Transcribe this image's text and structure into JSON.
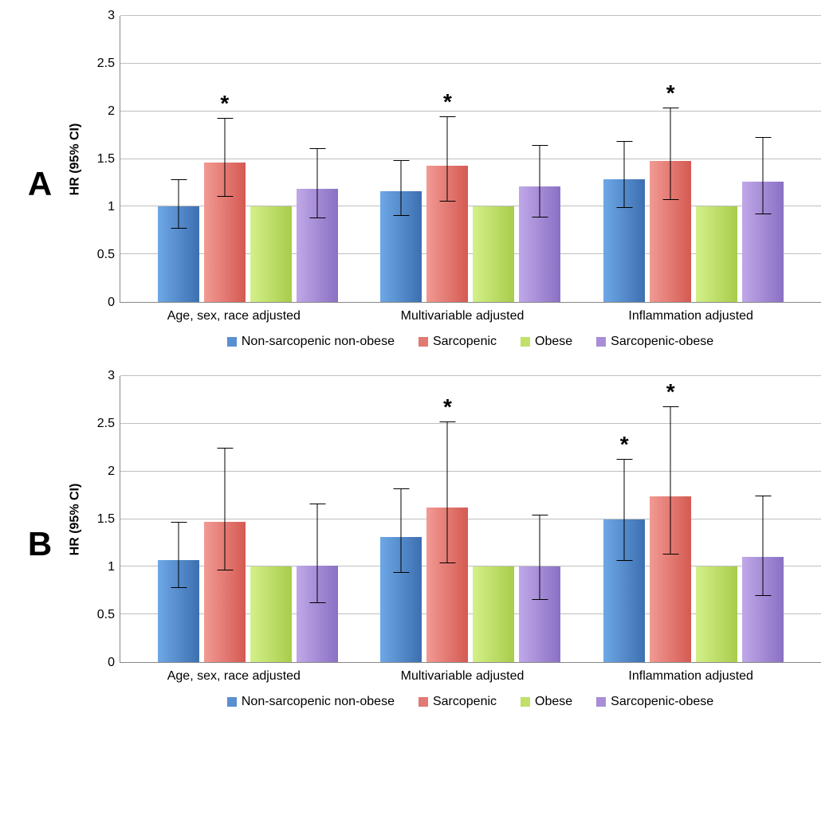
{
  "figure": {
    "background_color": "#ffffff",
    "grid_color": "#bfbfbf",
    "axis_color": "#888888",
    "ylabel": "HR (95% CI)",
    "ylim": [
      0,
      3
    ],
    "ytick_step": 0.5,
    "yticks": [
      "0",
      "0.5",
      "1",
      "1.5",
      "2",
      "2.5",
      "3"
    ],
    "categories": [
      "Age, sex, race adjusted",
      "Multivariable adjusted",
      "Inflammation adjusted"
    ],
    "series": [
      {
        "key": "nonsarc_nonobese",
        "label": "Non-sarcopenic non-obese",
        "gradient": [
          "#6ea8e6",
          "#3d6fb0"
        ],
        "swatch": "#5a8fd0"
      },
      {
        "key": "sarcopenic",
        "label": "Sarcopenic",
        "gradient": [
          "#f29a94",
          "#d45a52"
        ],
        "swatch": "#e17a72"
      },
      {
        "key": "obese",
        "label": "Obese",
        "gradient": [
          "#d4f08a",
          "#a8cc4a"
        ],
        "swatch": "#c0e068"
      },
      {
        "key": "sarc_obese",
        "label": "Sarcopenic-obese",
        "gradient": [
          "#c0a8e8",
          "#8a70c4"
        ],
        "swatch": "#a88ed6"
      }
    ],
    "panels": [
      {
        "label": "A",
        "groups": [
          {
            "bars": [
              {
                "value": 1.0,
                "ci_low": 0.77,
                "ci_high": 1.29,
                "sig": false
              },
              {
                "value": 1.46,
                "ci_low": 1.1,
                "ci_high": 1.93,
                "sig": true
              },
              {
                "value": 1.0,
                "ci_low": null,
                "ci_high": null,
                "sig": false
              },
              {
                "value": 1.19,
                "ci_low": 0.88,
                "ci_high": 1.61,
                "sig": false
              }
            ]
          },
          {
            "bars": [
              {
                "value": 1.16,
                "ci_low": 0.9,
                "ci_high": 1.49,
                "sig": false
              },
              {
                "value": 1.43,
                "ci_low": 1.05,
                "ci_high": 1.95,
                "sig": true
              },
              {
                "value": 1.0,
                "ci_low": null,
                "ci_high": null,
                "sig": false
              },
              {
                "value": 1.21,
                "ci_low": 0.89,
                "ci_high": 1.65,
                "sig": false
              }
            ]
          },
          {
            "bars": [
              {
                "value": 1.29,
                "ci_low": 0.99,
                "ci_high": 1.69,
                "sig": false
              },
              {
                "value": 1.48,
                "ci_low": 1.07,
                "ci_high": 2.04,
                "sig": true
              },
              {
                "value": 1.0,
                "ci_low": null,
                "ci_high": null,
                "sig": false
              },
              {
                "value": 1.26,
                "ci_low": 0.92,
                "ci_high": 1.73,
                "sig": false
              }
            ]
          }
        ]
      },
      {
        "label": "B",
        "groups": [
          {
            "bars": [
              {
                "value": 1.07,
                "ci_low": 0.78,
                "ci_high": 1.47,
                "sig": false
              },
              {
                "value": 1.47,
                "ci_low": 0.96,
                "ci_high": 2.25,
                "sig": false
              },
              {
                "value": 1.0,
                "ci_low": null,
                "ci_high": null,
                "sig": false
              },
              {
                "value": 1.01,
                "ci_low": 0.62,
                "ci_high": 1.66,
                "sig": false
              }
            ]
          },
          {
            "bars": [
              {
                "value": 1.31,
                "ci_low": 0.94,
                "ci_high": 1.82,
                "sig": false
              },
              {
                "value": 1.62,
                "ci_low": 1.04,
                "ci_high": 2.52,
                "sig": true
              },
              {
                "value": 1.0,
                "ci_low": null,
                "ci_high": null,
                "sig": false
              },
              {
                "value": 1.0,
                "ci_low": 0.65,
                "ci_high": 1.55,
                "sig": false
              }
            ]
          },
          {
            "bars": [
              {
                "value": 1.5,
                "ci_low": 1.06,
                "ci_high": 2.13,
                "sig": true
              },
              {
                "value": 1.74,
                "ci_low": 1.13,
                "ci_high": 2.68,
                "sig": true
              },
              {
                "value": 1.0,
                "ci_low": null,
                "ci_high": null,
                "sig": false
              },
              {
                "value": 1.1,
                "ci_low": 0.69,
                "ci_high": 1.75,
                "sig": false
              }
            ]
          }
        ]
      }
    ]
  }
}
